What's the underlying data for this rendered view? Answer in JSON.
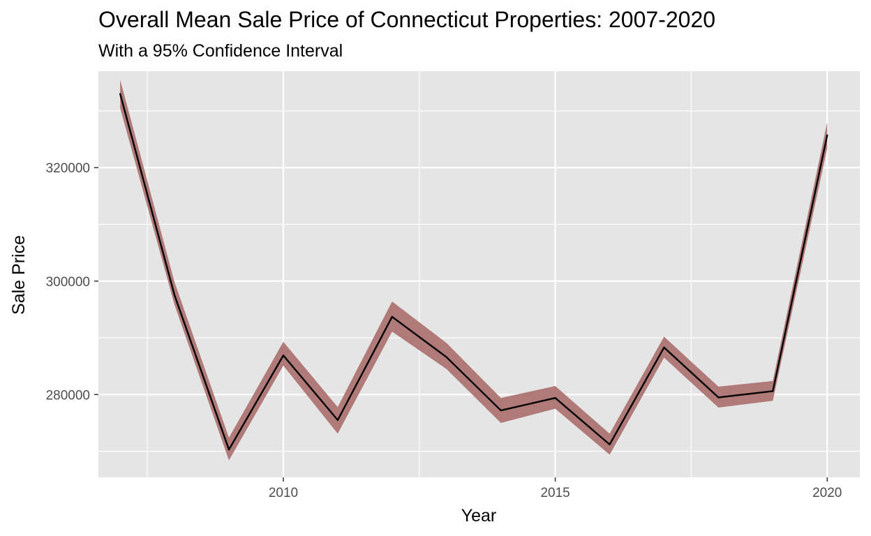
{
  "chart_data": {
    "type": "line",
    "title": "Overall Mean Sale Price of Connecticut Properties: 2007-2020",
    "subtitle": "With a 95% Confidence Interval",
    "xlabel": "Year",
    "ylabel": "Sale Price",
    "x": [
      2007,
      2008,
      2009,
      2010,
      2011,
      2012,
      2013,
      2014,
      2015,
      2016,
      2017,
      2018,
      2019,
      2020
    ],
    "series": [
      {
        "values": [
          333000,
          297500,
          270300,
          286900,
          275500,
          293700,
          286600,
          277200,
          279400,
          271200,
          288300,
          279500,
          280600,
          325700
        ],
        "lower": [
          330500,
          295800,
          268400,
          285100,
          273100,
          291100,
          284500,
          275000,
          277500,
          269400,
          286500,
          277700,
          278900,
          323400
        ],
        "upper": [
          335500,
          299800,
          272400,
          289300,
          277800,
          296400,
          289100,
          279400,
          281500,
          273100,
          290200,
          281400,
          282400,
          328000
        ]
      }
    ],
    "xlim": [
      2006.6,
      2020.6
    ],
    "ylim": [
      265400,
      337000
    ],
    "x_ticks": [
      2010,
      2015,
      2020
    ],
    "x_minor_ticks": [
      2007.5,
      2012.5,
      2017.5
    ],
    "y_ticks": [
      280000,
      300000,
      320000
    ],
    "y_minor_ticks": [
      270000,
      290000,
      310000,
      330000
    ],
    "grid": true,
    "colors": {
      "panel_background": "#e5e5e5",
      "grid": "#ffffff",
      "ribbon": "#b07a79",
      "line": "#000000"
    }
  }
}
